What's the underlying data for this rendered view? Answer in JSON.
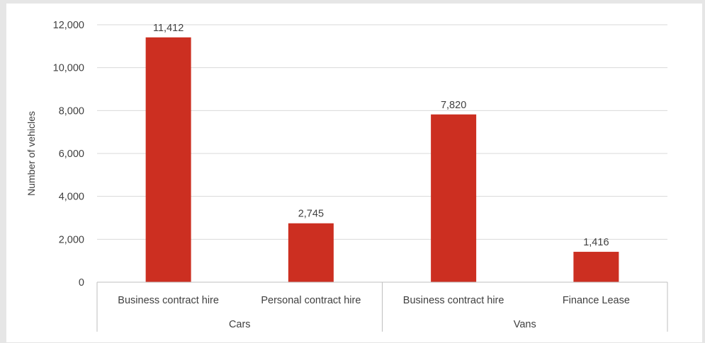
{
  "chart_data": {
    "type": "bar",
    "ylabel": "Number of vehicles",
    "ylim": [
      0,
      12000
    ],
    "yticks": [
      0,
      2000,
      4000,
      6000,
      8000,
      10000,
      12000
    ],
    "ytick_labels": [
      "0",
      "2,000",
      "4,000",
      "6,000",
      "8,000",
      "10,000",
      "12,000"
    ],
    "groups": [
      {
        "name": "Cars",
        "categories": [
          "Business contract hire",
          "Personal contract hire"
        ]
      },
      {
        "name": "Vans",
        "categories": [
          "Business contract hire",
          "Finance Lease"
        ]
      }
    ],
    "categories": [
      "Business contract hire",
      "Personal contract hire",
      "Business contract hire",
      "Finance Lease"
    ],
    "values": [
      11412,
      2745,
      7820,
      1416
    ],
    "data_labels": [
      "11,412",
      "2,745",
      "7,820",
      "1,416"
    ],
    "grid": true,
    "legend": "none",
    "colors": {
      "bar": "#cc2f21",
      "grid": "#d9d9d9",
      "axis": "#bfbfbf",
      "text": "#404040"
    }
  }
}
